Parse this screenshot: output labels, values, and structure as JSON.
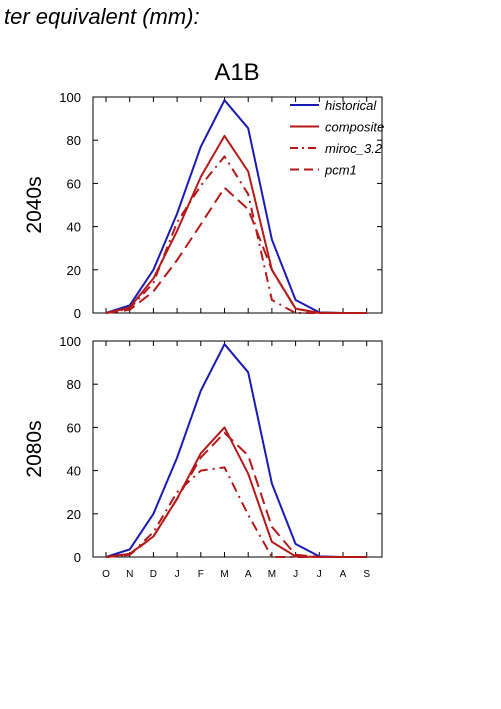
{
  "page": {
    "title": "ter equivalent (mm):"
  },
  "chart_data": {
    "type": "line",
    "title": "A1B",
    "categories": [
      "O",
      "N",
      "D",
      "J",
      "F",
      "M",
      "A",
      "M",
      "J",
      "J",
      "A",
      "S"
    ],
    "ylim": [
      0,
      100
    ],
    "yticks": [
      0,
      20,
      40,
      60,
      80,
      100
    ],
    "grid": false,
    "legend_position": "top-right",
    "legend": [
      {
        "name": "historical",
        "color": "#1a1ab4",
        "dash": "solid"
      },
      {
        "name": "composite",
        "color": "#b41a1a",
        "dash": "solid"
      },
      {
        "name": "miroc_3.2",
        "color": "#b41a1a",
        "dash": "dashdot"
      },
      {
        "name": "pcm1",
        "color": "#b41a1a",
        "dash": "dashed"
      }
    ],
    "panels": [
      {
        "label": "2040s",
        "series": [
          {
            "name": "historical",
            "values": [
              0,
              3.5,
              20,
              46,
              77,
              98.5,
              85.5,
              34,
              6,
              0.3,
              0,
              0
            ]
          },
          {
            "name": "composite",
            "values": [
              0,
              2.5,
              16,
              38,
              63,
              82,
              65.5,
              20,
              2,
              0.1,
              0,
              0
            ]
          },
          {
            "name": "miroc_3.2",
            "values": [
              0,
              2,
              14,
              42,
              59,
              72.5,
              55,
              6,
              0,
              0,
              0,
              0
            ]
          },
          {
            "name": "pcm1",
            "values": [
              0,
              1.5,
              10,
              24.5,
              41,
              58,
              48,
              20,
              2,
              0,
              0,
              0
            ]
          }
        ]
      },
      {
        "label": "2080s",
        "series": [
          {
            "name": "historical",
            "values": [
              0,
              3.5,
              20,
              46,
              77,
              98.5,
              85.5,
              34,
              6,
              0.3,
              0,
              0
            ]
          },
          {
            "name": "composite",
            "values": [
              0,
              1.5,
              9.5,
              27,
              48,
              60,
              38.5,
              7,
              0.3,
              0,
              0,
              0
            ]
          },
          {
            "name": "miroc_3.2",
            "values": [
              0,
              1,
              11.5,
              30,
              40,
              41.5,
              19.5,
              0,
              0,
              0,
              0,
              0
            ]
          },
          {
            "name": "pcm1",
            "values": [
              0,
              1,
              9.5,
              27,
              46,
              57.5,
              47,
              14,
              1,
              0,
              0,
              0
            ]
          }
        ]
      }
    ]
  }
}
